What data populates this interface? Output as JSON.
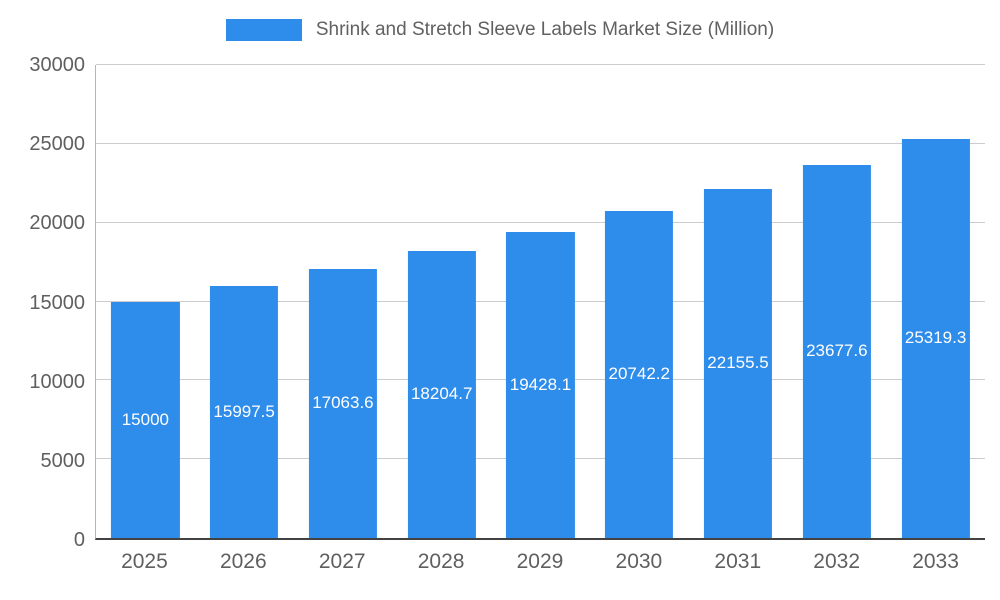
{
  "chart_data": {
    "type": "bar",
    "title": "Shrink and Stretch Sleeve Labels Market Size (Million)",
    "categories": [
      "2025",
      "2026",
      "2027",
      "2028",
      "2029",
      "2030",
      "2031",
      "2032",
      "2033"
    ],
    "values": [
      15000,
      15997.5,
      17063.6,
      18204.7,
      19428.1,
      20742.2,
      22155.5,
      23677.6,
      25319.3
    ],
    "value_labels": [
      "15000",
      "15997.5",
      "17063.6",
      "18204.7",
      "19428.1",
      "20742.2",
      "22155.5",
      "23677.6",
      "25319.3"
    ],
    "xlabel": "",
    "ylabel": "",
    "ylim": [
      0,
      30000
    ],
    "yticks": [
      0,
      5000,
      10000,
      15000,
      20000,
      25000,
      30000
    ],
    "grid": true,
    "legend_position": "top"
  },
  "colors": {
    "bar": "#2e8cea",
    "grid-line": "#cccccc",
    "axis-line": "#424242",
    "y-axis-line": "#b5b5b5",
    "tick-text": "#5f5f5f",
    "legend-text": "#616161",
    "bar-label-text": "#ffffff",
    "background": "#ffffff"
  }
}
